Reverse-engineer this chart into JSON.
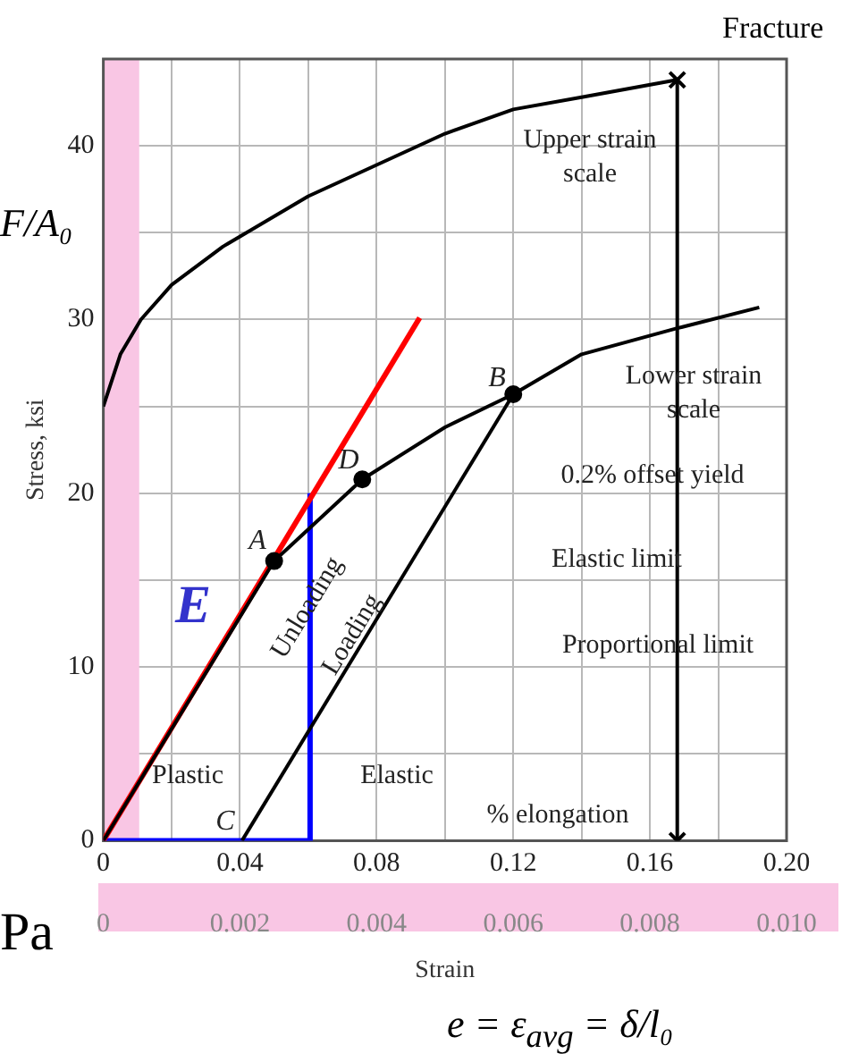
{
  "chart_data": {
    "type": "line",
    "xlabel": "Strain",
    "ylabel": "Stress, ksi",
    "xlim": [
      0,
      0.2
    ],
    "xticks": [
      0,
      {
        "value": 0.02,
        "label": null
      },
      0.04,
      {
        "value": 0.06,
        "label": null
      },
      0.08,
      {
        "value": 0.1,
        "label": null
      },
      0.12,
      {
        "value": 0.14,
        "label": null
      },
      0.16,
      {
        "value": 0.18,
        "label": null
      },
      {
        "value": 0.2,
        "label": "0.20"
      }
    ],
    "x2lim": [
      0,
      0.01
    ],
    "x2ticks": [
      0,
      0.002,
      0.004,
      0.006,
      0.008,
      {
        "value": 0.01,
        "label": "0.010"
      }
    ],
    "ylim": [
      0,
      45
    ],
    "yticks": [
      0,
      {
        "value": 5,
        "label": null
      },
      10,
      {
        "value": 15,
        "label": null
      },
      20,
      {
        "value": 25,
        "label": null
      },
      30,
      {
        "value": 35,
        "label": null
      },
      40
    ],
    "grid": true,
    "legend": false,
    "bands": [
      {
        "axis": "x",
        "from": 0,
        "to": 0.0105,
        "color": "#f9c6e4"
      }
    ],
    "series": [
      {
        "type": "line",
        "color": "#000000",
        "marker": "none",
        "x": [
          0,
          0.005,
          0.011,
          0.02,
          0.035,
          0.06,
          0.08,
          0.1,
          0.12,
          0.14,
          0.168
        ],
        "values": [
          25,
          28,
          30,
          32,
          34.2,
          37.1,
          38.9,
          40.7,
          42.1,
          42.8,
          43.8
        ]
      },
      {
        "type": "line",
        "axis": "x2",
        "color": "#000000",
        "marker": "none",
        "x": [
          0,
          0.0025,
          0.00379,
          0.005,
          0.006,
          0.007,
          0.0084,
          0.0096
        ],
        "values": [
          0,
          16.1,
          20.8,
          23.8,
          25.7,
          28,
          29.5,
          30.7
        ]
      },
      {
        "type": "line",
        "axis": "x2",
        "color": "#000000",
        "marker": "none",
        "x": [
          0.00203,
          0.006
        ],
        "values": [
          0,
          25.7
        ]
      },
      {
        "type": "line",
        "axis": "x2",
        "color": "#ff0000",
        "marker": "none",
        "x": [
          0,
          0.00463
        ],
        "values": [
          0,
          30.1
        ]
      },
      {
        "type": "line",
        "axis": "x2",
        "color": "#0000ff",
        "marker": "none",
        "x": [
          0,
          0.003026,
          0.003026
        ],
        "values": [
          0,
          0,
          20
        ]
      },
      {
        "type": "line",
        "color": "#000000",
        "marker": "cross",
        "x": [
          0.168,
          0.168
        ],
        "values": [
          0,
          43.8
        ]
      },
      {
        "type": "scatter",
        "axis": "x2",
        "color": "#000000",
        "marker": "circle",
        "x": [
          0.0025,
          0.00379,
          0.006
        ],
        "values": [
          16.1,
          20.8,
          25.7
        ]
      }
    ],
    "annotations": [
      "Upper strain scale",
      "Lower strain scale",
      "0.2% offset yield",
      "Elastic limit",
      "Proportional limit",
      "Unloading",
      "Loading",
      "Plastic",
      "Elastic",
      "% elongation",
      "A",
      "D",
      "B",
      "C",
      "E",
      "Fracture",
      "F/A₀",
      "Pa",
      "e = ε$_{avg}$ = δ/l₀"
    ]
  }
}
